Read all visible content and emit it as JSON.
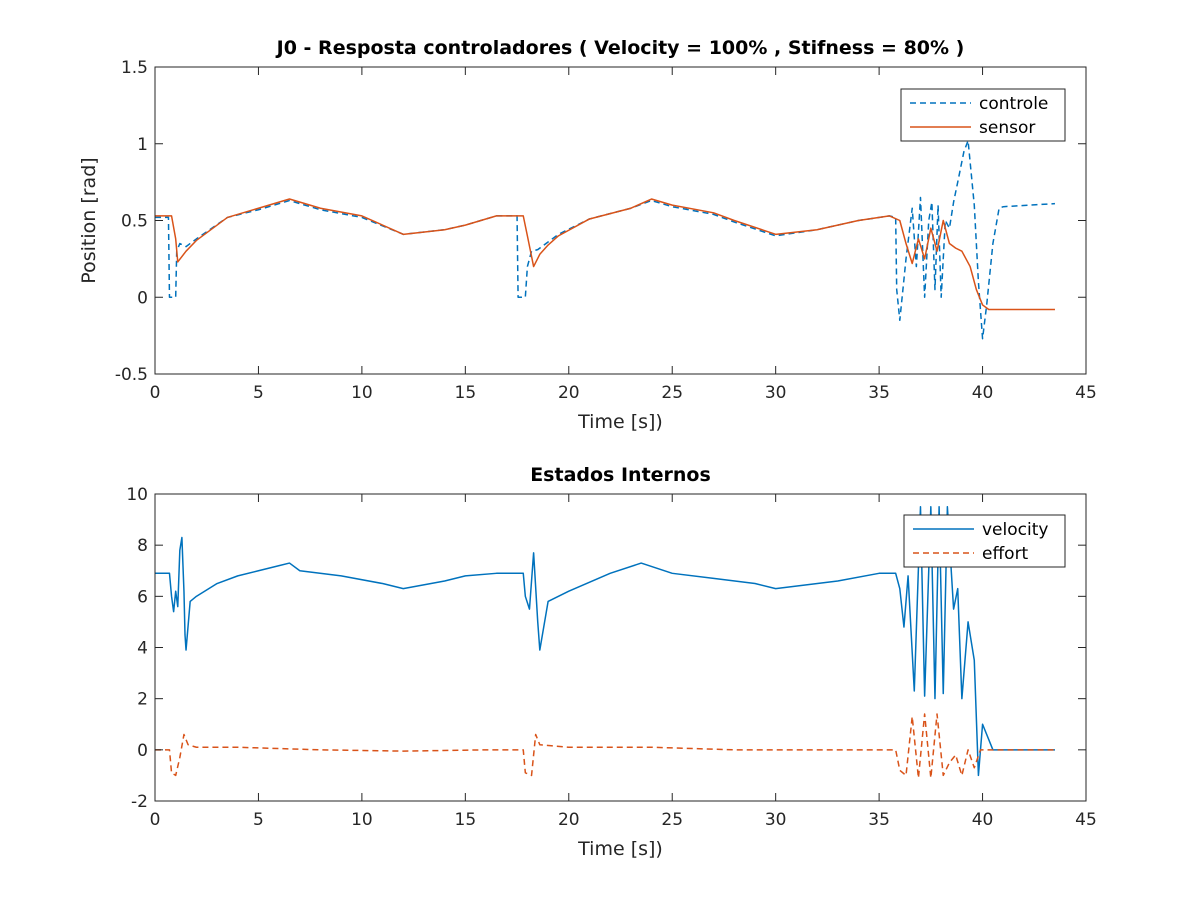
{
  "chart_data": [
    {
      "type": "line",
      "title": "J0 - Resposta controladores ( Velocity = 100% , Stifness = 80% )",
      "xlabel": "Time [s])",
      "ylabel": "Position [rad]",
      "xlim": [
        0,
        45
      ],
      "ylim": [
        -0.5,
        1.5
      ],
      "xticks": [
        "0",
        "5",
        "10",
        "15",
        "20",
        "25",
        "30",
        "35",
        "40",
        "45"
      ],
      "yticks": [
        "-0.5",
        "0",
        "0.5",
        "1",
        "1.5"
      ],
      "grid": false,
      "legend_position": "top-right",
      "series": [
        {
          "name": "controle",
          "style": "dashed",
          "color": "#0072bd",
          "points": [
            [
              0,
              0.52
            ],
            [
              0.65,
              0.52
            ],
            [
              0.7,
              0
            ],
            [
              1.0,
              0
            ],
            [
              1.05,
              0.3
            ],
            [
              1.2,
              0.35
            ],
            [
              1.5,
              0.33
            ],
            [
              2,
              0.38
            ],
            [
              3.5,
              0.52
            ],
            [
              5,
              0.57
            ],
            [
              6.5,
              0.63
            ],
            [
              8,
              0.57
            ],
            [
              10,
              0.52
            ],
            [
              12,
              0.41
            ],
            [
              14,
              0.44
            ],
            [
              15,
              0.47
            ],
            [
              16.5,
              0.53
            ],
            [
              17.5,
              0.53
            ],
            [
              17.55,
              0
            ],
            [
              17.9,
              0
            ],
            [
              18.0,
              0.2
            ],
            [
              18.2,
              0.3
            ],
            [
              18.5,
              0.31
            ],
            [
              19,
              0.36
            ],
            [
              19.5,
              0.41
            ],
            [
              21,
              0.51
            ],
            [
              23,
              0.58
            ],
            [
              24,
              0.63
            ],
            [
              25,
              0.59
            ],
            [
              27,
              0.54
            ],
            [
              28,
              0.49
            ],
            [
              30,
              0.4
            ],
            [
              32,
              0.44
            ],
            [
              34,
              0.5
            ],
            [
              35.5,
              0.53
            ],
            [
              35.8,
              0.52
            ],
            [
              35.85,
              0.05
            ],
            [
              36.0,
              -0.15
            ],
            [
              36.3,
              0.25
            ],
            [
              36.6,
              0.58
            ],
            [
              36.8,
              0.2
            ],
            [
              37.0,
              0.65
            ],
            [
              37.2,
              0.0
            ],
            [
              37.4,
              0.5
            ],
            [
              37.55,
              0.62
            ],
            [
              37.7,
              0.05
            ],
            [
              37.85,
              0.6
            ],
            [
              38.0,
              0.0
            ],
            [
              38.2,
              0.5
            ],
            [
              38.4,
              0.45
            ],
            [
              38.6,
              0.62
            ],
            [
              38.8,
              0.75
            ],
            [
              39.1,
              0.95
            ],
            [
              39.3,
              1.02
            ],
            [
              39.6,
              0.6
            ],
            [
              39.8,
              0.1
            ],
            [
              40.0,
              -0.27
            ],
            [
              40.2,
              -0.05
            ],
            [
              40.5,
              0.35
            ],
            [
              40.8,
              0.58
            ],
            [
              41,
              0.59
            ],
            [
              43.5,
              0.61
            ]
          ]
        },
        {
          "name": "sensor",
          "style": "solid",
          "color": "#d95319",
          "points": [
            [
              0,
              0.53
            ],
            [
              0.8,
              0.53
            ],
            [
              1.0,
              0.38
            ],
            [
              1.1,
              0.23
            ],
            [
              1.5,
              0.3
            ],
            [
              2,
              0.37
            ],
            [
              3.5,
              0.52
            ],
            [
              5,
              0.58
            ],
            [
              6.5,
              0.64
            ],
            [
              8,
              0.58
            ],
            [
              10,
              0.53
            ],
            [
              12,
              0.41
            ],
            [
              14,
              0.44
            ],
            [
              15,
              0.47
            ],
            [
              16.5,
              0.53
            ],
            [
              17.8,
              0.53
            ],
            [
              18.0,
              0.4
            ],
            [
              18.3,
              0.2
            ],
            [
              18.6,
              0.28
            ],
            [
              19,
              0.34
            ],
            [
              19.5,
              0.4
            ],
            [
              21,
              0.51
            ],
            [
              23,
              0.58
            ],
            [
              24,
              0.64
            ],
            [
              25,
              0.6
            ],
            [
              27,
              0.55
            ],
            [
              28,
              0.5
            ],
            [
              30,
              0.41
            ],
            [
              32,
              0.44
            ],
            [
              34,
              0.5
            ],
            [
              35.5,
              0.53
            ],
            [
              36.0,
              0.5
            ],
            [
              36.3,
              0.35
            ],
            [
              36.6,
              0.22
            ],
            [
              36.9,
              0.38
            ],
            [
              37.2,
              0.25
            ],
            [
              37.5,
              0.45
            ],
            [
              37.8,
              0.3
            ],
            [
              38.1,
              0.5
            ],
            [
              38.4,
              0.35
            ],
            [
              38.7,
              0.32
            ],
            [
              39.0,
              0.3
            ],
            [
              39.4,
              0.2
            ],
            [
              39.7,
              0.05
            ],
            [
              40.0,
              -0.05
            ],
            [
              40.3,
              -0.08
            ],
            [
              43.5,
              -0.08
            ]
          ]
        }
      ]
    },
    {
      "type": "line",
      "title": "Estados Internos",
      "xlabel": "Time [s])",
      "ylabel": "",
      "xlim": [
        0,
        45
      ],
      "ylim": [
        -2,
        10
      ],
      "xticks": [
        "0",
        "5",
        "10",
        "15",
        "20",
        "25",
        "30",
        "35",
        "40",
        "45"
      ],
      "yticks": [
        "-2",
        "0",
        "2",
        "4",
        "6",
        "8",
        "10"
      ],
      "grid": false,
      "legend_position": "top-right",
      "series": [
        {
          "name": "velocity",
          "style": "solid",
          "color": "#0072bd",
          "points": [
            [
              0,
              6.9
            ],
            [
              0.7,
              6.9
            ],
            [
              0.8,
              6.0
            ],
            [
              0.9,
              5.4
            ],
            [
              1.0,
              6.2
            ],
            [
              1.1,
              5.6
            ],
            [
              1.2,
              7.8
            ],
            [
              1.3,
              8.3
            ],
            [
              1.4,
              6.2
            ],
            [
              1.45,
              4.5
            ],
            [
              1.5,
              3.9
            ],
            [
              1.7,
              5.8
            ],
            [
              2,
              6.0
            ],
            [
              3,
              6.5
            ],
            [
              4,
              6.8
            ],
            [
              5,
              7.0
            ],
            [
              6,
              7.2
            ],
            [
              6.5,
              7.3
            ],
            [
              7,
              7.0
            ],
            [
              9,
              6.8
            ],
            [
              11,
              6.5
            ],
            [
              12,
              6.3
            ],
            [
              14,
              6.6
            ],
            [
              15,
              6.8
            ],
            [
              16.5,
              6.9
            ],
            [
              17.8,
              6.9
            ],
            [
              17.9,
              6.0
            ],
            [
              18.1,
              5.5
            ],
            [
              18.3,
              7.7
            ],
            [
              18.5,
              5.0
            ],
            [
              18.6,
              3.9
            ],
            [
              19,
              5.8
            ],
            [
              20,
              6.2
            ],
            [
              22,
              6.9
            ],
            [
              23.5,
              7.3
            ],
            [
              25,
              6.9
            ],
            [
              27,
              6.7
            ],
            [
              29,
              6.5
            ],
            [
              30,
              6.3
            ],
            [
              33,
              6.6
            ],
            [
              35,
              6.9
            ],
            [
              35.8,
              6.9
            ],
            [
              36.0,
              6.3
            ],
            [
              36.2,
              4.8
            ],
            [
              36.4,
              6.8
            ],
            [
              36.7,
              2.3
            ],
            [
              37.0,
              9.5
            ],
            [
              37.2,
              2.1
            ],
            [
              37.5,
              9.5
            ],
            [
              37.7,
              2.0
            ],
            [
              37.9,
              9.5
            ],
            [
              38.1,
              2.2
            ],
            [
              38.3,
              9.5
            ],
            [
              38.6,
              5.5
            ],
            [
              38.8,
              6.3
            ],
            [
              39.0,
              2.0
            ],
            [
              39.3,
              5.0
            ],
            [
              39.6,
              3.5
            ],
            [
              39.8,
              -1.0
            ],
            [
              40.0,
              1.0
            ],
            [
              40.5,
              0.0
            ],
            [
              43.5,
              0.0
            ]
          ]
        },
        {
          "name": "effort",
          "style": "dashed",
          "color": "#d95319",
          "points": [
            [
              0,
              0
            ],
            [
              0.7,
              0
            ],
            [
              0.8,
              -0.9
            ],
            [
              1.0,
              -1.0
            ],
            [
              1.2,
              -0.3
            ],
            [
              1.4,
              0.6
            ],
            [
              1.6,
              0.2
            ],
            [
              2,
              0.1
            ],
            [
              4,
              0.1
            ],
            [
              6,
              0.05
            ],
            [
              8,
              0.0
            ],
            [
              12,
              -0.05
            ],
            [
              16,
              0.0
            ],
            [
              17.8,
              0.0
            ],
            [
              17.9,
              -0.9
            ],
            [
              18.2,
              -1.0
            ],
            [
              18.4,
              0.6
            ],
            [
              18.6,
              0.2
            ],
            [
              20,
              0.1
            ],
            [
              24,
              0.1
            ],
            [
              28,
              0.0
            ],
            [
              32,
              0.0
            ],
            [
              35.8,
              0.0
            ],
            [
              36.0,
              -0.8
            ],
            [
              36.3,
              -1.0
            ],
            [
              36.6,
              1.3
            ],
            [
              36.9,
              -1.1
            ],
            [
              37.2,
              1.4
            ],
            [
              37.5,
              -1.1
            ],
            [
              37.8,
              1.4
            ],
            [
              38.1,
              -1.0
            ],
            [
              38.4,
              -0.5
            ],
            [
              38.7,
              -0.2
            ],
            [
              39.0,
              -1.0
            ],
            [
              39.3,
              0.0
            ],
            [
              39.6,
              -0.7
            ],
            [
              39.9,
              0.0
            ],
            [
              43.5,
              0.0
            ]
          ]
        }
      ]
    }
  ]
}
